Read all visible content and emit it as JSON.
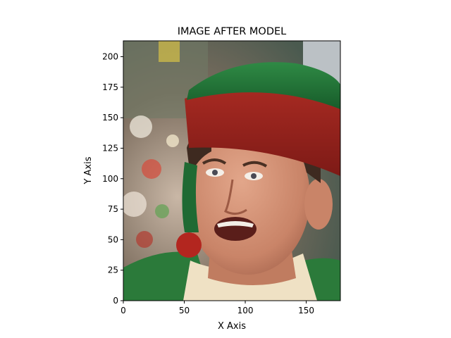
{
  "chart_data": {
    "type": "image",
    "title": "IMAGE AFTER MODEL",
    "xlabel": "X Axis",
    "ylabel": "Y Axis",
    "xlim": [
      0,
      178
    ],
    "ylim": [
      0,
      213
    ],
    "xticks": [
      0,
      50,
      100,
      150
    ],
    "yticks": [
      0,
      25,
      50,
      75,
      100,
      125,
      150,
      175,
      200
    ],
    "image_subject": "man in a red-and-green elf hat"
  }
}
